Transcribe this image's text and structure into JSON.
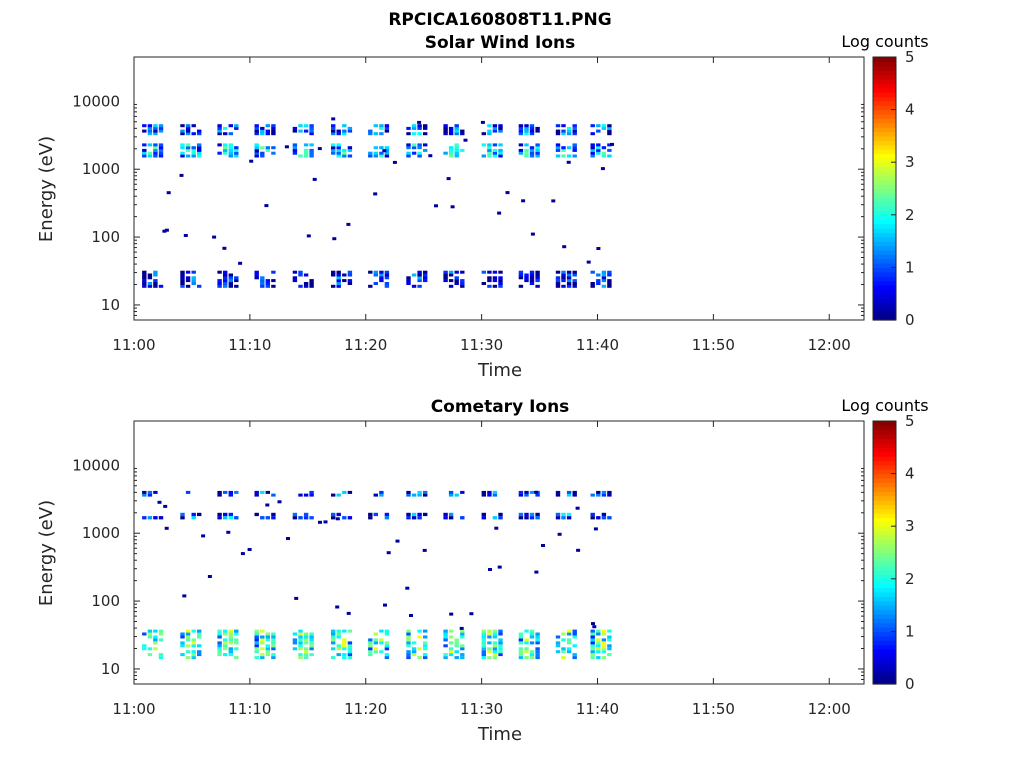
{
  "figure": {
    "title": "RPCICA160808T11.PNG"
  },
  "chart_data": [
    {
      "type": "heatmap",
      "title": "Solar Wind Ions",
      "xlabel": "Time",
      "ylabel": "Energy (eV)",
      "x_ticks": [
        "11:00",
        "11:10",
        "11:20",
        "11:30",
        "11:40",
        "11:50",
        "12:00"
      ],
      "y_ticks": [
        "10",
        "100",
        "1000",
        "10000"
      ],
      "y_scale": "log",
      "xlim_minutes": [
        0,
        63
      ],
      "ylim_eV": [
        6,
        45000
      ],
      "colorbar": {
        "label": "Log counts",
        "min": 0,
        "max": 5,
        "ticks": [
          "0",
          "1",
          "2",
          "3",
          "4",
          "5"
        ]
      },
      "bursts_minutes": [
        1.6,
        4.9,
        8.1,
        11.3,
        14.6,
        17.9,
        21.1,
        24.4,
        27.6,
        30.9,
        34.1,
        37.3,
        40.3
      ],
      "bands": [
        {
          "name": "high-energy",
          "e_min_eV": 3200,
          "e_max_eV": 4600,
          "level": 1.1
        },
        {
          "name": "mid-energy",
          "e_min_eV": 1500,
          "e_max_eV": 2400,
          "level": 1.6
        },
        {
          "name": "low-energy",
          "e_min_eV": 18,
          "e_max_eV": 32,
          "level": 0.7
        }
      ]
    },
    {
      "type": "heatmap",
      "title": "Cometary Ions",
      "xlabel": "Time",
      "ylabel": "Energy (eV)",
      "x_ticks": [
        "11:00",
        "11:10",
        "11:20",
        "11:30",
        "11:40",
        "11:50",
        "12:00"
      ],
      "y_ticks": [
        "10",
        "100",
        "1000",
        "10000"
      ],
      "y_scale": "log",
      "xlim_minutes": [
        0,
        63
      ],
      "ylim_eV": [
        6,
        45000
      ],
      "colorbar": {
        "label": "Log counts",
        "min": 0,
        "max": 5,
        "ticks": [
          "0",
          "1",
          "2",
          "3",
          "4",
          "5"
        ]
      },
      "bursts_minutes": [
        1.6,
        4.9,
        8.1,
        11.3,
        14.6,
        17.9,
        21.1,
        24.4,
        27.6,
        30.9,
        34.1,
        37.3,
        40.3
      ],
      "bands": [
        {
          "name": "high-energy",
          "e_min_eV": 3500,
          "e_max_eV": 4200,
          "level": 0.9
        },
        {
          "name": "mid-energy",
          "e_min_eV": 1600,
          "e_max_eV": 2000,
          "level": 1.0
        },
        {
          "name": "low-energy",
          "e_min_eV": 14,
          "e_max_eV": 38,
          "level": 2.2
        }
      ]
    }
  ]
}
